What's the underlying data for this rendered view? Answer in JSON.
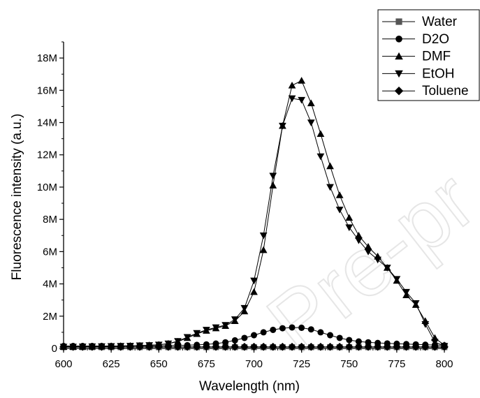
{
  "chart_data": {
    "type": "line",
    "xlabel": "Wavelength (nm)",
    "ylabel": "Fluorescence intensity (a.u.)",
    "xlim": [
      600,
      800
    ],
    "ylim": [
      0,
      19000000
    ],
    "xticks": [
      600,
      625,
      650,
      675,
      700,
      725,
      750,
      775,
      800
    ],
    "xtick_labels": [
      "600",
      "625",
      "650",
      "675",
      "700",
      "725",
      "750",
      "775",
      "800"
    ],
    "yticks": [
      0,
      2000000,
      4000000,
      6000000,
      8000000,
      10000000,
      12000000,
      14000000,
      16000000,
      18000000
    ],
    "ytick_labels": [
      "0",
      "2M",
      "4M",
      "6M",
      "8M",
      "10M",
      "12M",
      "14M",
      "16M",
      "18M"
    ],
    "grid": false,
    "legend_position": "top-right",
    "watermark": "Pre-pr",
    "series": [
      {
        "name": "Water",
        "marker": "square",
        "color": "#555555",
        "x": [
          600,
          605,
          610,
          615,
          620,
          625,
          630,
          635,
          640,
          645,
          650,
          655,
          660,
          665,
          670,
          675,
          680,
          685,
          690,
          695,
          700,
          705,
          710,
          715,
          720,
          725,
          730,
          735,
          740,
          745,
          750,
          755,
          760,
          765,
          770,
          775,
          780,
          785,
          790,
          795,
          800
        ],
        "y": [
          80000,
          80000,
          80000,
          80000,
          80000,
          80000,
          80000,
          80000,
          80000,
          80000,
          80000,
          80000,
          80000,
          80000,
          80000,
          80000,
          80000,
          80000,
          80000,
          80000,
          80000,
          80000,
          80000,
          80000,
          80000,
          80000,
          80000,
          80000,
          80000,
          80000,
          80000,
          80000,
          80000,
          80000,
          80000,
          80000,
          80000,
          80000,
          80000,
          80000,
          80000
        ]
      },
      {
        "name": "D2O",
        "marker": "circle",
        "color": "#000000",
        "x": [
          600,
          605,
          610,
          615,
          620,
          625,
          630,
          635,
          640,
          645,
          650,
          655,
          660,
          665,
          670,
          675,
          680,
          685,
          690,
          695,
          700,
          705,
          710,
          715,
          720,
          725,
          730,
          735,
          740,
          745,
          750,
          755,
          760,
          765,
          770,
          775,
          780,
          785,
          790,
          795,
          800
        ],
        "y": [
          150000,
          150000,
          150000,
          150000,
          150000,
          150000,
          150000,
          160000,
          160000,
          160000,
          170000,
          180000,
          190000,
          200000,
          220000,
          250000,
          300000,
          380000,
          500000,
          650000,
          820000,
          1000000,
          1150000,
          1250000,
          1300000,
          1280000,
          1180000,
          1000000,
          820000,
          650000,
          520000,
          430000,
          380000,
          340000,
          310000,
          290000,
          270000,
          250000,
          230000,
          210000,
          190000
        ]
      },
      {
        "name": "DMF",
        "marker": "triangle-up",
        "color": "#000000",
        "x": [
          600,
          605,
          610,
          615,
          620,
          625,
          630,
          635,
          640,
          645,
          650,
          655,
          660,
          665,
          670,
          675,
          680,
          685,
          690,
          695,
          700,
          705,
          710,
          715,
          720,
          725,
          730,
          735,
          740,
          745,
          750,
          755,
          760,
          765,
          770,
          775,
          780,
          785,
          790,
          795,
          800
        ],
        "y": [
          100000,
          100000,
          110000,
          120000,
          130000,
          140000,
          150000,
          160000,
          180000,
          200000,
          230000,
          300000,
          420000,
          650000,
          900000,
          1100000,
          1250000,
          1400000,
          1700000,
          2300000,
          3500000,
          6100000,
          10100000,
          13800000,
          16300000,
          16600000,
          15200000,
          13300000,
          11300000,
          9500000,
          8100000,
          7000000,
          6300000,
          5700000,
          5000000,
          4200000,
          3300000,
          2700000,
          1700000,
          650000,
          200000
        ]
      },
      {
        "name": "EtOH",
        "marker": "triangle-down",
        "color": "#000000",
        "x": [
          600,
          605,
          610,
          615,
          620,
          625,
          630,
          635,
          640,
          645,
          650,
          655,
          660,
          665,
          670,
          675,
          680,
          685,
          690,
          695,
          700,
          705,
          710,
          715,
          720,
          725,
          730,
          735,
          740,
          745,
          750,
          755,
          760,
          765,
          770,
          775,
          780,
          785,
          790,
          795,
          800
        ],
        "y": [
          100000,
          100000,
          110000,
          120000,
          130000,
          140000,
          150000,
          160000,
          180000,
          200000,
          230000,
          300000,
          450000,
          700000,
          950000,
          1150000,
          1300000,
          1450000,
          1800000,
          2500000,
          4200000,
          7000000,
          10700000,
          13800000,
          15500000,
          15400000,
          14000000,
          11900000,
          10000000,
          8600000,
          7500000,
          6700000,
          6000000,
          5500000,
          5000000,
          4300000,
          3500000,
          2800000,
          1500000,
          400000,
          150000
        ]
      },
      {
        "name": "Toluene",
        "marker": "diamond",
        "color": "#000000",
        "x": [
          600,
          605,
          610,
          615,
          620,
          625,
          630,
          635,
          640,
          645,
          650,
          655,
          660,
          665,
          670,
          675,
          680,
          685,
          690,
          695,
          700,
          705,
          710,
          715,
          720,
          725,
          730,
          735,
          740,
          745,
          750,
          755,
          760,
          765,
          770,
          775,
          780,
          785,
          790,
          795,
          800
        ],
        "y": [
          100000,
          100000,
          100000,
          100000,
          100000,
          100000,
          100000,
          100000,
          100000,
          100000,
          100000,
          100000,
          100000,
          100000,
          100000,
          100000,
          100000,
          100000,
          100000,
          100000,
          100000,
          100000,
          100000,
          100000,
          100000,
          100000,
          100000,
          100000,
          100000,
          100000,
          100000,
          100000,
          100000,
          100000,
          100000,
          100000,
          100000,
          100000,
          100000,
          100000,
          100000
        ]
      }
    ]
  }
}
